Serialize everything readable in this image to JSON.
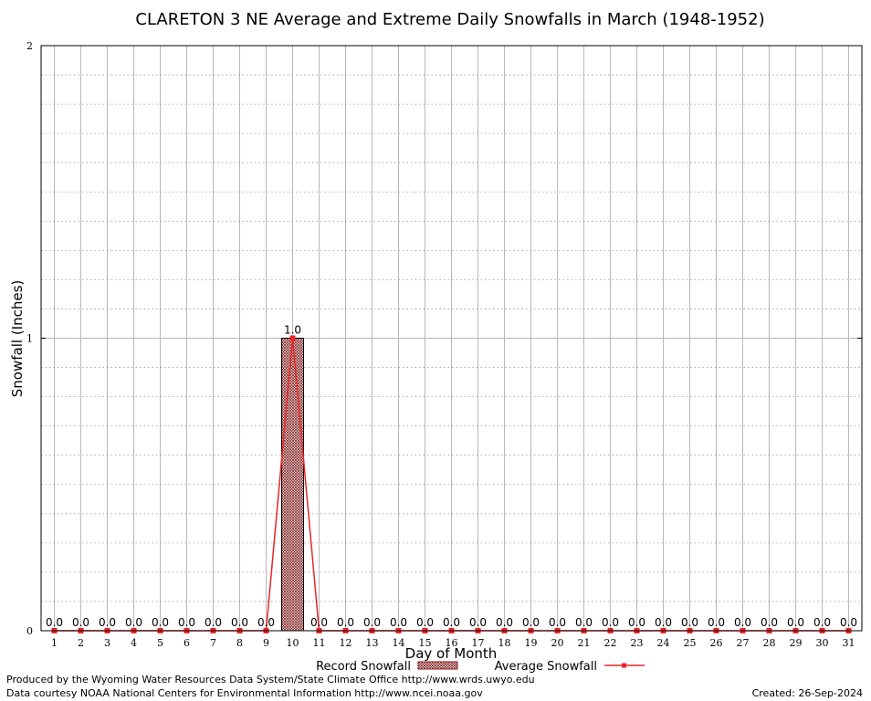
{
  "chart_data": {
    "type": "bar",
    "title": "CLARETON 3 NE Average and Extreme Daily Snowfalls in March (1948-1952)",
    "xlabel": "Day of Month",
    "ylabel": "Snowfall (Inches)",
    "ylim": [
      0,
      2
    ],
    "yticks": [
      "0",
      "1",
      "2"
    ],
    "grid": true,
    "legend_position": "bottom",
    "categories": [
      "1",
      "2",
      "3",
      "4",
      "5",
      "6",
      "7",
      "8",
      "9",
      "10",
      "11",
      "12",
      "13",
      "14",
      "15",
      "16",
      "17",
      "18",
      "19",
      "20",
      "21",
      "22",
      "23",
      "24",
      "25",
      "26",
      "27",
      "28",
      "29",
      "30",
      "31"
    ],
    "series": [
      {
        "name": "Record Snowfall",
        "type": "bar",
        "color": "#8b1a1a",
        "values": [
          0,
          0,
          0,
          0,
          0,
          0,
          0,
          0,
          0,
          1.0,
          0,
          0,
          0,
          0,
          0,
          0,
          0,
          0,
          0,
          0,
          0,
          0,
          0,
          0,
          0,
          0,
          0,
          0,
          0,
          0,
          0
        ],
        "labels": [
          "0.0",
          "0.0",
          "0.0",
          "0.0",
          "0.0",
          "0.0",
          "0.0",
          "0.0",
          "0.0",
          "1.0",
          "0.0",
          "0.0",
          "0.0",
          "0.0",
          "0.0",
          "0.0",
          "0.0",
          "0.0",
          "0.0",
          "0.0",
          "0.0",
          "0.0",
          "0.0",
          "0.0",
          "0.0",
          "0.0",
          "0.0",
          "0.0",
          "0.0",
          "0.0",
          "0.0"
        ]
      },
      {
        "name": "Average Snowfall",
        "type": "line",
        "color": "#e8262a",
        "values": [
          0,
          0,
          0,
          0,
          0,
          0,
          0,
          0,
          0,
          1.0,
          0,
          0,
          0,
          0,
          0,
          0,
          0,
          0,
          0,
          0,
          0,
          0,
          0,
          0,
          0,
          0,
          0,
          0,
          0,
          0,
          0
        ]
      }
    ]
  },
  "footer": {
    "produced_by": "Produced by the Wyoming Water Resources Data System/State Climate Office http://www.wrds.uwyo.edu",
    "courtesy": "Data courtesy NOAA National Centers for Environmental Information http://www.ncei.noaa.gov",
    "created": "Created: 26-Sep-2024"
  }
}
